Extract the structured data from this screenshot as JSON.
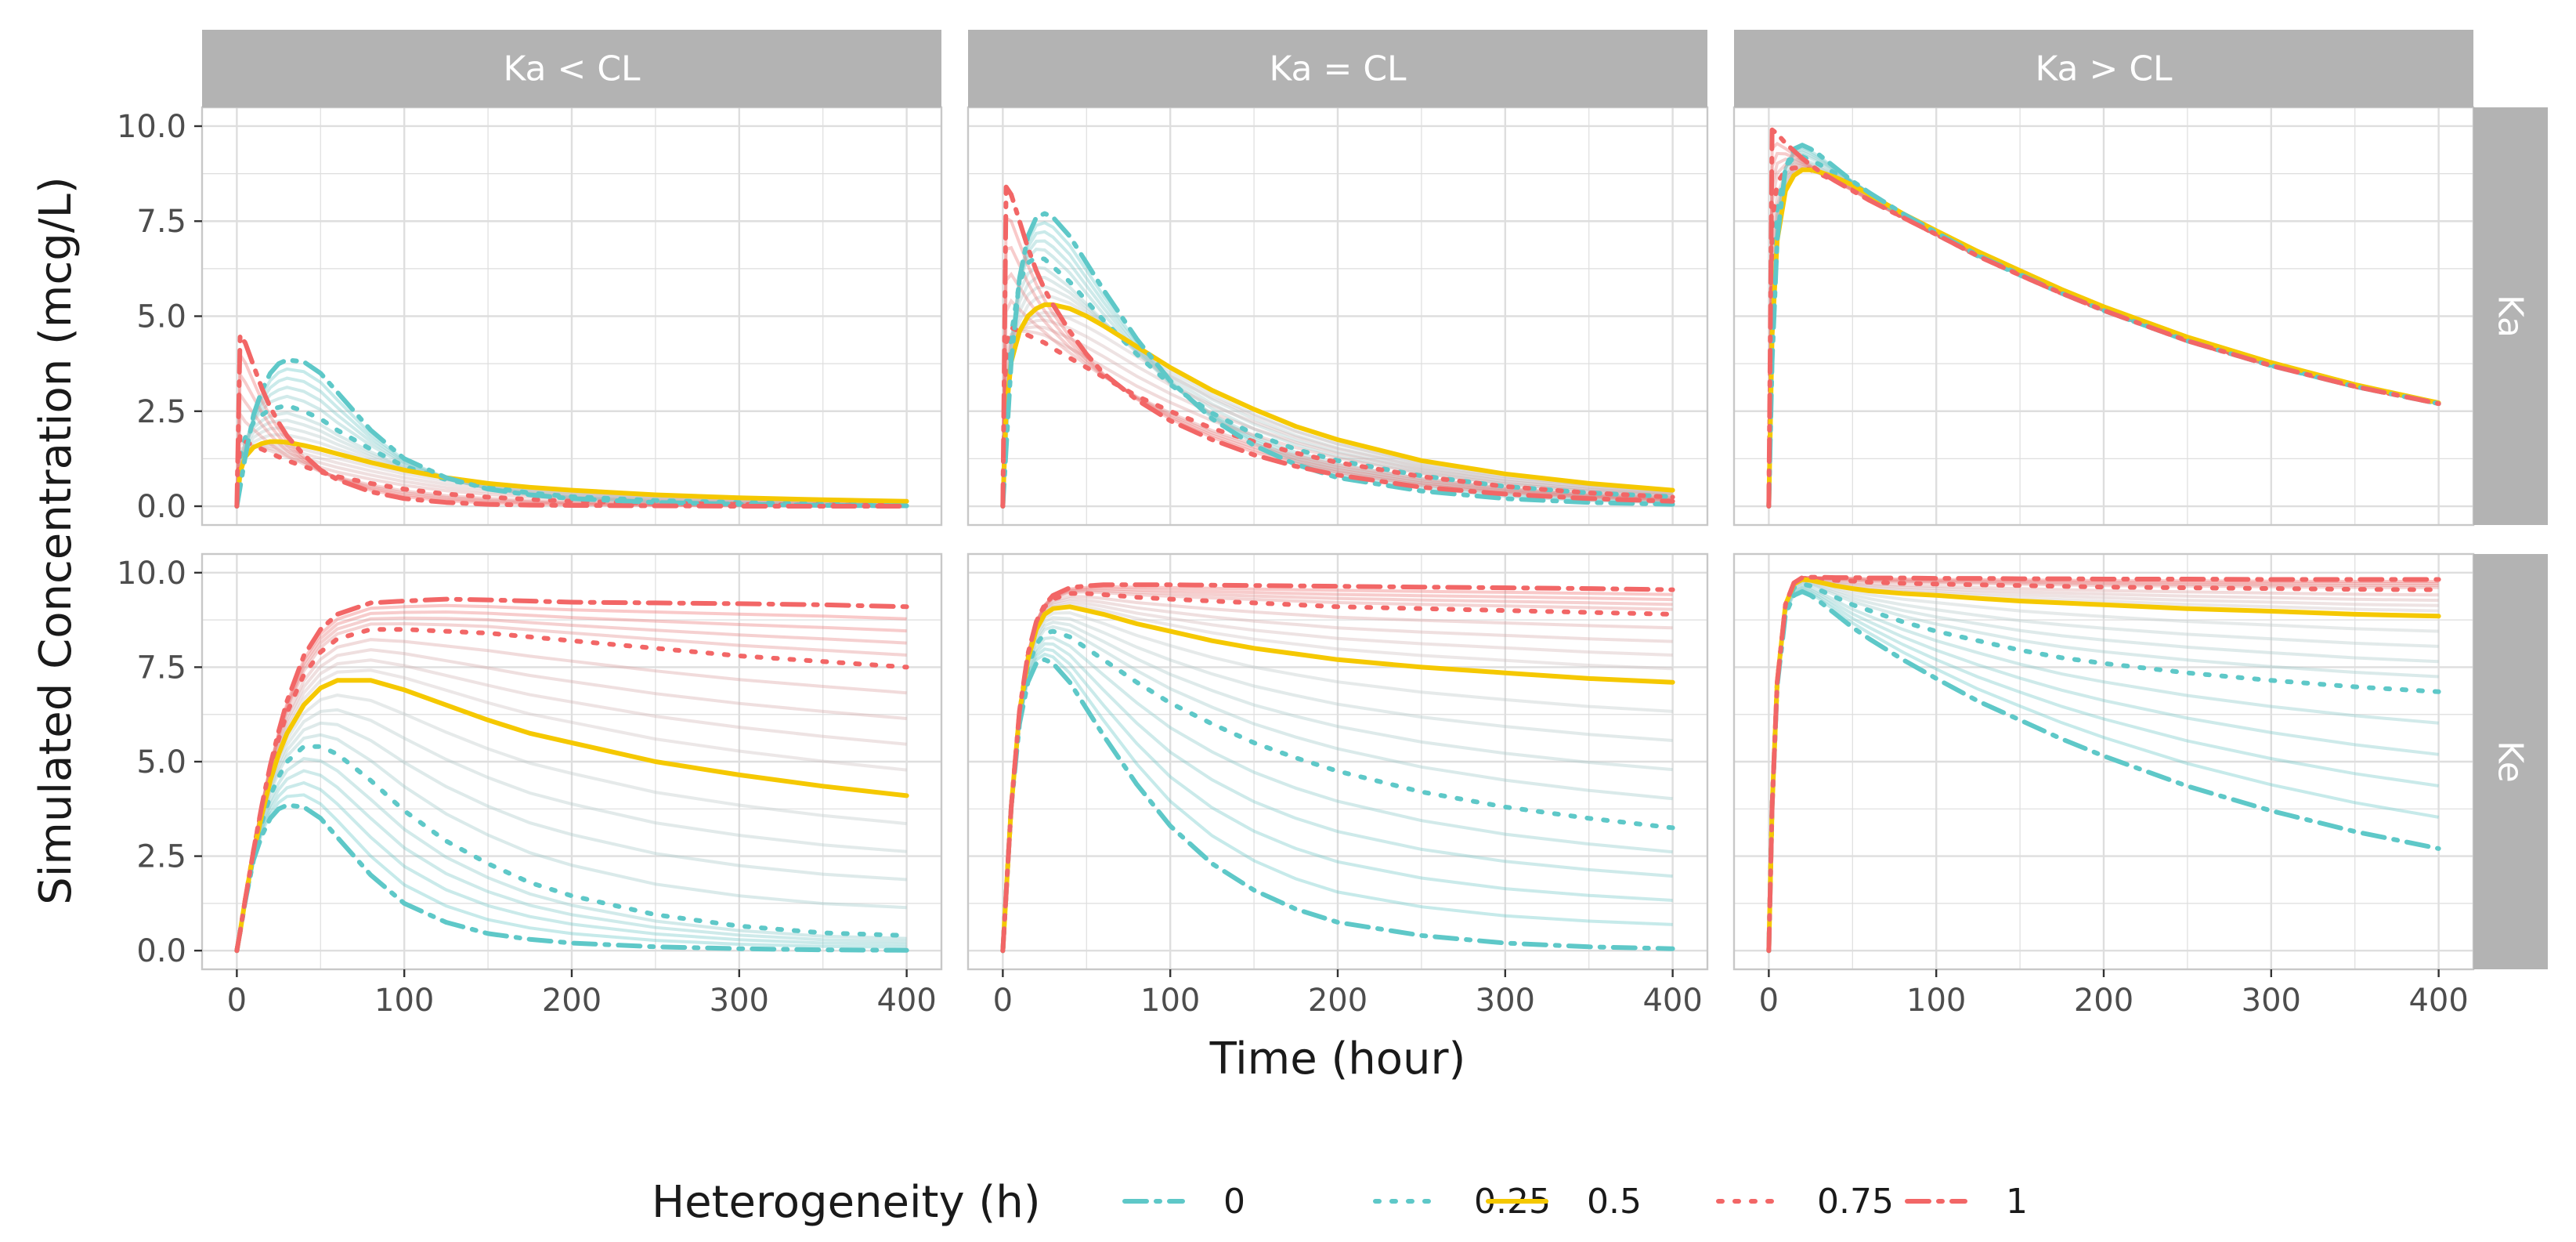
{
  "chart_data": {
    "type": "line",
    "title": "",
    "xlabel": "Time (hour)",
    "ylabel": "Simulated Concentration (mcg/L)",
    "xlim": [
      0,
      400
    ],
    "ylim": [
      0,
      10
    ],
    "x_ticks": [
      0,
      100,
      200,
      300,
      400
    ],
    "y_ticks": [
      0,
      2.5,
      5,
      7.5,
      10
    ],
    "x_tick_labels": [
      "0",
      "100",
      "200",
      "300",
      "400"
    ],
    "y_tick_labels": [
      "0.0",
      "2.5",
      "5.0",
      "7.5",
      "10.0"
    ],
    "grid": true,
    "facet_cols": [
      "Ka < CL",
      "Ka = CL",
      "Ka > CL"
    ],
    "facet_rows": [
      "Ka",
      "Ke"
    ],
    "legend": {
      "title": "Heterogeneity (h)",
      "position": "bottom",
      "entries": [
        {
          "label": "0",
          "color": "#5ec8c8",
          "dash": "dashdot"
        },
        {
          "label": "0.25",
          "color": "#5ec8c8",
          "dash": "dotted"
        },
        {
          "label": "0.5",
          "color": "#f5c800",
          "dash": "solid"
        },
        {
          "label": "0.75",
          "color": "#f26666",
          "dash": "dotted"
        },
        {
          "label": "1",
          "color": "#f26666",
          "dash": "dashdot"
        }
      ]
    },
    "colors": {
      "low": "#5ec8c8",
      "mid": "#f5c800",
      "high": "#f26666",
      "strip_bg": "#b3b3b3",
      "grid": "#dedede",
      "panel_border": "#c8c8c8"
    },
    "x": [
      0,
      2,
      5,
      10,
      15,
      20,
      25,
      30,
      40,
      50,
      60,
      80,
      100,
      125,
      150,
      175,
      200,
      250,
      300,
      350,
      400
    ],
    "panels": [
      {
        "row": "Ka",
        "col": "Ka < CL",
        "series": [
          {
            "h": 0,
            "values": [
              0,
              0.5,
              1.3,
              2.4,
              3.05,
              3.5,
              3.75,
              3.85,
              3.8,
              3.5,
              3.0,
              2.0,
              1.25,
              0.75,
              0.45,
              0.3,
              0.2,
              0.1,
              0.05,
              0.02,
              0.01
            ]
          },
          {
            "h": 0.25,
            "values": [
              0,
              1.3,
              1.8,
              2.2,
              2.4,
              2.55,
              2.6,
              2.65,
              2.5,
              2.3,
              2.0,
              1.5,
              1.05,
              0.7,
              0.5,
              0.35,
              0.25,
              0.15,
              0.1,
              0.06,
              0.04
            ]
          },
          {
            "h": 0.5,
            "values": [
              0,
              0.9,
              1.3,
              1.55,
              1.65,
              1.7,
              1.7,
              1.68,
              1.6,
              1.5,
              1.38,
              1.15,
              0.95,
              0.75,
              0.6,
              0.5,
              0.42,
              0.3,
              0.22,
              0.17,
              0.13
            ]
          },
          {
            "h": 0.75,
            "values": [
              0,
              1.9,
              1.7,
              1.6,
              1.5,
              1.4,
              1.3,
              1.2,
              1.05,
              0.9,
              0.78,
              0.6,
              0.45,
              0.32,
              0.24,
              0.18,
              0.13,
              0.08,
              0.05,
              0.03,
              0.02
            ]
          },
          {
            "h": 1,
            "values": [
              0,
              4.5,
              4.3,
              3.7,
              3.1,
              2.6,
              2.2,
              1.85,
              1.35,
              0.95,
              0.7,
              0.38,
              0.2,
              0.1,
              0.05,
              0.03,
              0.02,
              0.01,
              0.0,
              0.0,
              0.0
            ]
          }
        ]
      },
      {
        "row": "Ka",
        "col": "Ka = CL",
        "series": [
          {
            "h": 0,
            "values": [
              0,
              1.5,
              3.8,
              6.0,
              7.1,
              7.6,
              7.7,
              7.6,
              7.1,
              6.4,
              5.7,
              4.4,
              3.3,
              2.3,
              1.6,
              1.1,
              0.75,
              0.4,
              0.2,
              0.1,
              0.05
            ]
          },
          {
            "h": 0.25,
            "values": [
              0,
              2.5,
              4.5,
              5.9,
              6.4,
              6.55,
              6.5,
              6.3,
              5.9,
              5.4,
              4.9,
              4.0,
              3.2,
              2.45,
              1.9,
              1.5,
              1.2,
              0.8,
              0.52,
              0.35,
              0.25
            ]
          },
          {
            "h": 0.5,
            "values": [
              0,
              2.5,
              3.8,
              4.6,
              5.0,
              5.2,
              5.3,
              5.3,
              5.2,
              5.0,
              4.75,
              4.2,
              3.65,
              3.05,
              2.55,
              2.1,
              1.75,
              1.2,
              0.85,
              0.6,
              0.42
            ]
          },
          {
            "h": 0.75,
            "values": [
              0,
              4.3,
              4.7,
              4.6,
              4.5,
              4.4,
              4.3,
              4.15,
              3.9,
              3.65,
              3.4,
              2.9,
              2.5,
              2.05,
              1.7,
              1.4,
              1.15,
              0.78,
              0.52,
              0.35,
              0.24
            ]
          },
          {
            "h": 1,
            "values": [
              0,
              8.4,
              8.2,
              7.5,
              6.8,
              6.2,
              5.7,
              5.3,
              4.6,
              4.0,
              3.5,
              2.8,
              2.25,
              1.75,
              1.35,
              1.05,
              0.82,
              0.5,
              0.32,
              0.2,
              0.13
            ]
          }
        ]
      },
      {
        "row": "Ka",
        "col": "Ka > CL",
        "series": [
          {
            "h": 0,
            "values": [
              0,
              3.8,
              7.0,
              8.9,
              9.4,
              9.5,
              9.4,
              9.25,
              8.9,
              8.55,
              8.25,
              7.7,
              7.2,
              6.6,
              6.1,
              5.6,
              5.15,
              4.35,
              3.7,
              3.15,
              2.7
            ]
          },
          {
            "h": 0.25,
            "values": [
              0,
              5.0,
              7.8,
              8.9,
              9.2,
              9.2,
              9.1,
              9.0,
              8.75,
              8.5,
              8.2,
              7.65,
              7.15,
              6.58,
              6.08,
              5.6,
              5.15,
              4.35,
              3.7,
              3.15,
              2.7
            ]
          },
          {
            "h": 0.5,
            "values": [
              0,
              4.5,
              7.0,
              8.3,
              8.7,
              8.85,
              8.85,
              8.8,
              8.65,
              8.45,
              8.2,
              7.7,
              7.25,
              6.7,
              6.2,
              5.7,
              5.25,
              4.45,
              3.78,
              3.2,
              2.72
            ]
          },
          {
            "h": 0.75,
            "values": [
              0,
              7.5,
              8.5,
              8.85,
              8.9,
              8.9,
              8.85,
              8.75,
              8.55,
              8.35,
              8.1,
              7.6,
              7.15,
              6.58,
              6.08,
              5.6,
              5.15,
              4.35,
              3.7,
              3.15,
              2.7
            ]
          },
          {
            "h": 1,
            "values": [
              0,
              9.9,
              9.8,
              9.55,
              9.35,
              9.15,
              8.98,
              8.82,
              8.55,
              8.3,
              8.05,
              7.6,
              7.15,
              6.58,
              6.08,
              5.6,
              5.15,
              4.35,
              3.7,
              3.15,
              2.7
            ]
          }
        ]
      },
      {
        "row": "Ke",
        "col": "Ka < CL",
        "series": [
          {
            "h": 0,
            "values": [
              0,
              0.5,
              1.3,
              2.4,
              3.05,
              3.5,
              3.75,
              3.85,
              3.8,
              3.5,
              3.0,
              2.0,
              1.25,
              0.75,
              0.45,
              0.3,
              0.2,
              0.1,
              0.05,
              0.02,
              0.01
            ]
          },
          {
            "h": 0.25,
            "values": [
              0,
              0.5,
              1.3,
              2.5,
              3.4,
              4.1,
              4.6,
              5.0,
              5.4,
              5.4,
              5.2,
              4.5,
              3.7,
              2.9,
              2.3,
              1.8,
              1.45,
              0.95,
              0.65,
              0.47,
              0.4
            ]
          },
          {
            "h": 0.5,
            "values": [
              0,
              0.5,
              1.35,
              2.6,
              3.6,
              4.5,
              5.2,
              5.75,
              6.5,
              6.95,
              7.15,
              7.15,
              6.9,
              6.5,
              6.1,
              5.75,
              5.5,
              5.0,
              4.65,
              4.35,
              4.1
            ]
          },
          {
            "h": 0.75,
            "values": [
              0,
              0.5,
              1.35,
              2.65,
              3.8,
              4.8,
              5.6,
              6.3,
              7.3,
              7.9,
              8.25,
              8.5,
              8.5,
              8.45,
              8.4,
              8.3,
              8.2,
              8.0,
              7.8,
              7.65,
              7.5
            ]
          },
          {
            "h": 1,
            "values": [
              0,
              0.5,
              1.35,
              2.65,
              3.85,
              4.9,
              5.8,
              6.6,
              7.8,
              8.5,
              8.9,
              9.2,
              9.25,
              9.3,
              9.28,
              9.25,
              9.22,
              9.2,
              9.18,
              9.15,
              9.1
            ]
          }
        ]
      },
      {
        "row": "Ke",
        "col": "Ka = CL",
        "series": [
          {
            "h": 0,
            "values": [
              0,
              1.5,
              3.8,
              6.0,
              7.1,
              7.6,
              7.7,
              7.6,
              7.1,
              6.4,
              5.7,
              4.4,
              3.3,
              2.3,
              1.6,
              1.1,
              0.75,
              0.4,
              0.2,
              0.1,
              0.05
            ]
          },
          {
            "h": 0.25,
            "values": [
              0,
              1.5,
              3.8,
              6.2,
              7.5,
              8.1,
              8.4,
              8.45,
              8.3,
              8.0,
              7.7,
              7.1,
              6.55,
              6.0,
              5.5,
              5.1,
              4.75,
              4.2,
              3.8,
              3.5,
              3.25
            ]
          },
          {
            "h": 0.5,
            "values": [
              0,
              1.5,
              3.8,
              6.3,
              7.7,
              8.5,
              8.9,
              9.05,
              9.1,
              9.0,
              8.9,
              8.65,
              8.45,
              8.2,
              8.0,
              7.85,
              7.7,
              7.5,
              7.35,
              7.2,
              7.1
            ]
          },
          {
            "h": 0.75,
            "values": [
              0,
              1.5,
              3.8,
              6.3,
              7.8,
              8.65,
              9.1,
              9.3,
              9.45,
              9.45,
              9.42,
              9.35,
              9.3,
              9.25,
              9.2,
              9.15,
              9.1,
              9.05,
              9.0,
              8.95,
              8.9
            ]
          },
          {
            "h": 1,
            "values": [
              0,
              1.5,
              3.8,
              6.35,
              7.85,
              8.7,
              9.15,
              9.4,
              9.6,
              9.65,
              9.68,
              9.68,
              9.68,
              9.67,
              9.66,
              9.65,
              9.64,
              9.62,
              9.6,
              9.58,
              9.55
            ]
          }
        ]
      },
      {
        "row": "Ke",
        "col": "Ka > CL",
        "series": [
          {
            "h": 0,
            "values": [
              0,
              3.8,
              7.0,
              8.9,
              9.4,
              9.5,
              9.4,
              9.25,
              8.9,
              8.55,
              8.25,
              7.7,
              7.2,
              6.6,
              6.1,
              5.6,
              5.15,
              4.35,
              3.7,
              3.15,
              2.7
            ]
          },
          {
            "h": 0.25,
            "values": [
              0,
              3.8,
              7.1,
              9.1,
              9.6,
              9.7,
              9.65,
              9.55,
              9.35,
              9.15,
              9.0,
              8.7,
              8.45,
              8.2,
              7.95,
              7.75,
              7.6,
              7.35,
              7.15,
              6.98,
              6.85
            ]
          },
          {
            "h": 0.5,
            "values": [
              0,
              3.8,
              7.1,
              9.15,
              9.7,
              9.82,
              9.8,
              9.75,
              9.65,
              9.58,
              9.52,
              9.45,
              9.4,
              9.32,
              9.25,
              9.2,
              9.15,
              9.05,
              8.98,
              8.9,
              8.85
            ]
          },
          {
            "h": 0.75,
            "values": [
              0,
              3.8,
              7.1,
              9.15,
              9.72,
              9.85,
              9.85,
              9.83,
              9.8,
              9.78,
              9.75,
              9.72,
              9.7,
              9.68,
              9.66,
              9.64,
              9.62,
              9.6,
              9.58,
              9.56,
              9.55
            ]
          },
          {
            "h": 1,
            "values": [
              0,
              3.8,
              7.1,
              9.16,
              9.73,
              9.87,
              9.88,
              9.88,
              9.87,
              9.87,
              9.86,
              9.86,
              9.85,
              9.85,
              9.84,
              9.84,
              9.83,
              9.83,
              9.82,
              9.82,
              9.82
            ]
          }
        ]
      }
    ]
  }
}
